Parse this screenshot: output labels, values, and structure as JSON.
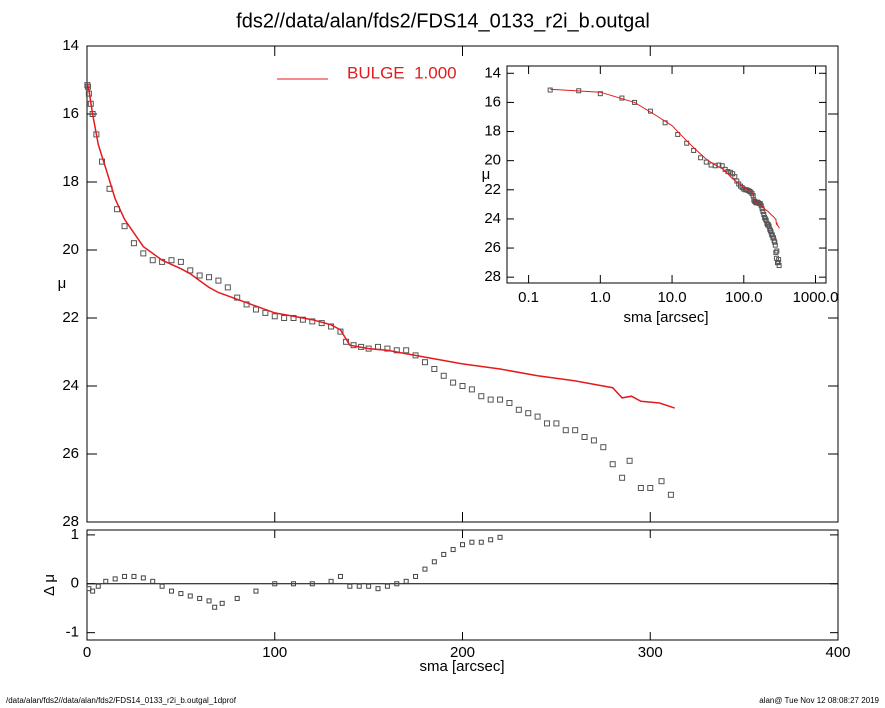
{
  "chart_data": [
    {
      "type": "scatter",
      "title": "fds2//data/alan/fds2/FDS14_0133_r2i_b.outgal",
      "ylabel": "μ",
      "xlim": [
        0,
        400
      ],
      "ylim": [
        28,
        14
      ],
      "yticks": [
        14,
        16,
        18,
        20,
        22,
        24,
        26,
        28
      ],
      "series": [
        {
          "color": "#555555",
          "x": [
            0.2,
            0.5,
            1,
            2,
            3,
            5,
            8,
            12,
            16,
            20,
            25,
            30,
            35,
            40,
            45,
            50,
            55,
            60,
            65,
            70,
            75,
            80,
            85,
            90,
            95,
            100,
            105,
            110,
            115,
            120,
            125,
            130,
            135,
            138,
            142,
            146,
            150,
            155,
            160,
            165,
            170,
            175,
            180,
            185,
            190,
            195,
            200,
            205,
            210,
            215,
            220,
            225,
            230,
            235,
            240,
            245,
            250,
            255,
            260,
            265,
            270,
            275,
            280,
            285,
            289,
            295,
            300,
            306,
            311
          ],
          "values": [
            15.15,
            15.2,
            15.4,
            15.7,
            16.0,
            16.6,
            17.4,
            18.2,
            18.8,
            19.3,
            19.8,
            20.1,
            20.3,
            20.35,
            20.3,
            20.35,
            20.6,
            20.75,
            20.8,
            20.9,
            21.1,
            21.4,
            21.6,
            21.75,
            21.85,
            21.95,
            22.0,
            22.0,
            22.05,
            22.1,
            22.15,
            22.25,
            22.4,
            22.7,
            22.8,
            22.85,
            22.9,
            22.85,
            22.9,
            22.95,
            22.95,
            23.1,
            23.3,
            23.5,
            23.7,
            23.9,
            24.0,
            24.1,
            24.3,
            24.4,
            24.4,
            24.5,
            24.7,
            24.8,
            24.9,
            25.1,
            25.1,
            25.3,
            25.3,
            25.5,
            25.6,
            25.8,
            26.3,
            26.7,
            26.2,
            27.0,
            27.0,
            26.8,
            27.2
          ]
        },
        {
          "type": "line",
          "name": "BULGE  1.000",
          "color": "#e41a1c",
          "x": [
            0.2,
            1,
            3,
            6,
            10,
            15,
            20,
            30,
            40,
            50,
            55,
            60,
            65,
            70,
            80,
            90,
            100,
            110,
            120,
            130,
            135,
            140,
            150,
            160,
            170,
            180,
            200,
            220,
            240,
            260,
            280,
            285,
            290,
            295,
            305,
            313
          ],
          "values": [
            15.1,
            15.3,
            16.0,
            16.9,
            17.6,
            18.5,
            19.1,
            19.9,
            20.3,
            20.55,
            20.7,
            20.9,
            21.1,
            21.25,
            21.45,
            21.65,
            21.85,
            21.95,
            22.05,
            22.2,
            22.35,
            22.8,
            22.9,
            22.95,
            23.05,
            23.15,
            23.35,
            23.5,
            23.7,
            23.85,
            24.05,
            24.35,
            24.3,
            24.45,
            24.5,
            24.65
          ]
        }
      ]
    },
    {
      "type": "scatter",
      "xlabel": "sma [arcsec]",
      "ylabel": "μ",
      "xlog": true,
      "xlim": [
        0.05,
        1400
      ],
      "ylim": [
        28.4,
        13.5
      ],
      "xticks": [
        0.1,
        {
          "value": 1,
          "label": "1.0"
        },
        {
          "value": 10,
          "label": "10.0"
        },
        {
          "value": 100,
          "label": "100.0"
        },
        {
          "value": 1000,
          "label": "1000.0"
        }
      ],
      "yticks": [
        14,
        16,
        18,
        20,
        22,
        24,
        26,
        28
      ]
    },
    {
      "type": "scatter",
      "xlabel": "sma [arcsec]",
      "ylabel": "Δ μ",
      "xlim": [
        0,
        400
      ],
      "ylim": [
        -1.15,
        1.1
      ],
      "xticks": [
        0,
        100,
        200,
        300,
        400
      ],
      "yticks": [
        1,
        0,
        -1
      ],
      "x": [
        1,
        3,
        6,
        10,
        15,
        20,
        25,
        30,
        35,
        40,
        45,
        50,
        55,
        60,
        65,
        68,
        72,
        80,
        90,
        100,
        110,
        120,
        130,
        135,
        140,
        145,
        150,
        155,
        160,
        165,
        170,
        175,
        180,
        185,
        190,
        195,
        200,
        205,
        210,
        215,
        220
      ],
      "values": [
        -0.1,
        -0.15,
        -0.05,
        0.05,
        0.1,
        0.15,
        0.15,
        0.12,
        0.05,
        -0.05,
        -0.15,
        -0.2,
        -0.25,
        -0.3,
        -0.35,
        -0.48,
        -0.4,
        -0.3,
        -0.15,
        0.0,
        0.0,
        0.0,
        0.05,
        0.15,
        -0.05,
        -0.05,
        -0.05,
        -0.1,
        -0.05,
        0.0,
        0.05,
        0.15,
        0.3,
        0.45,
        0.6,
        0.7,
        0.8,
        0.85,
        0.85,
        0.9,
        0.95
      ]
    }
  ],
  "footer": {
    "left": "/data/alan/fds2//data/alan/fds2/FDS14_0133_r2i_b.outgal_1dprof",
    "right": "alan@  Tue Nov 12 08:08:27 2019"
  }
}
